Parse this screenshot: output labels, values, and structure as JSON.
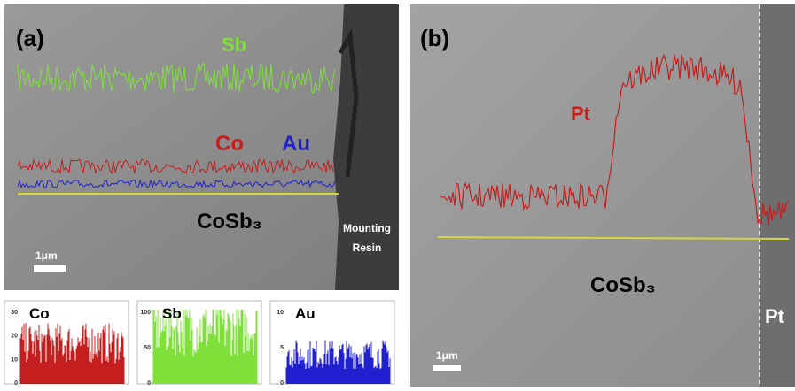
{
  "panel_a": {
    "label": "(a)",
    "sb": "Sb",
    "co": "Co",
    "au": "Au",
    "material": "CoSb₃",
    "resin_1": "Mounting",
    "resin_2": "Resin",
    "scale": "1μm"
  },
  "histograms": [
    {
      "label": "Co",
      "ticks": [
        "30",
        "20",
        "10",
        "0"
      ]
    },
    {
      "label": "Sb",
      "ticks": [
        "100",
        "50",
        "0"
      ]
    },
    {
      "label": "Au",
      "ticks": [
        "10",
        "5",
        "0"
      ]
    }
  ],
  "panel_b": {
    "label": "(b)",
    "pt_trace": "Pt",
    "material": "CoSb₃",
    "pt_layer": "Pt",
    "scale": "1μm"
  }
}
